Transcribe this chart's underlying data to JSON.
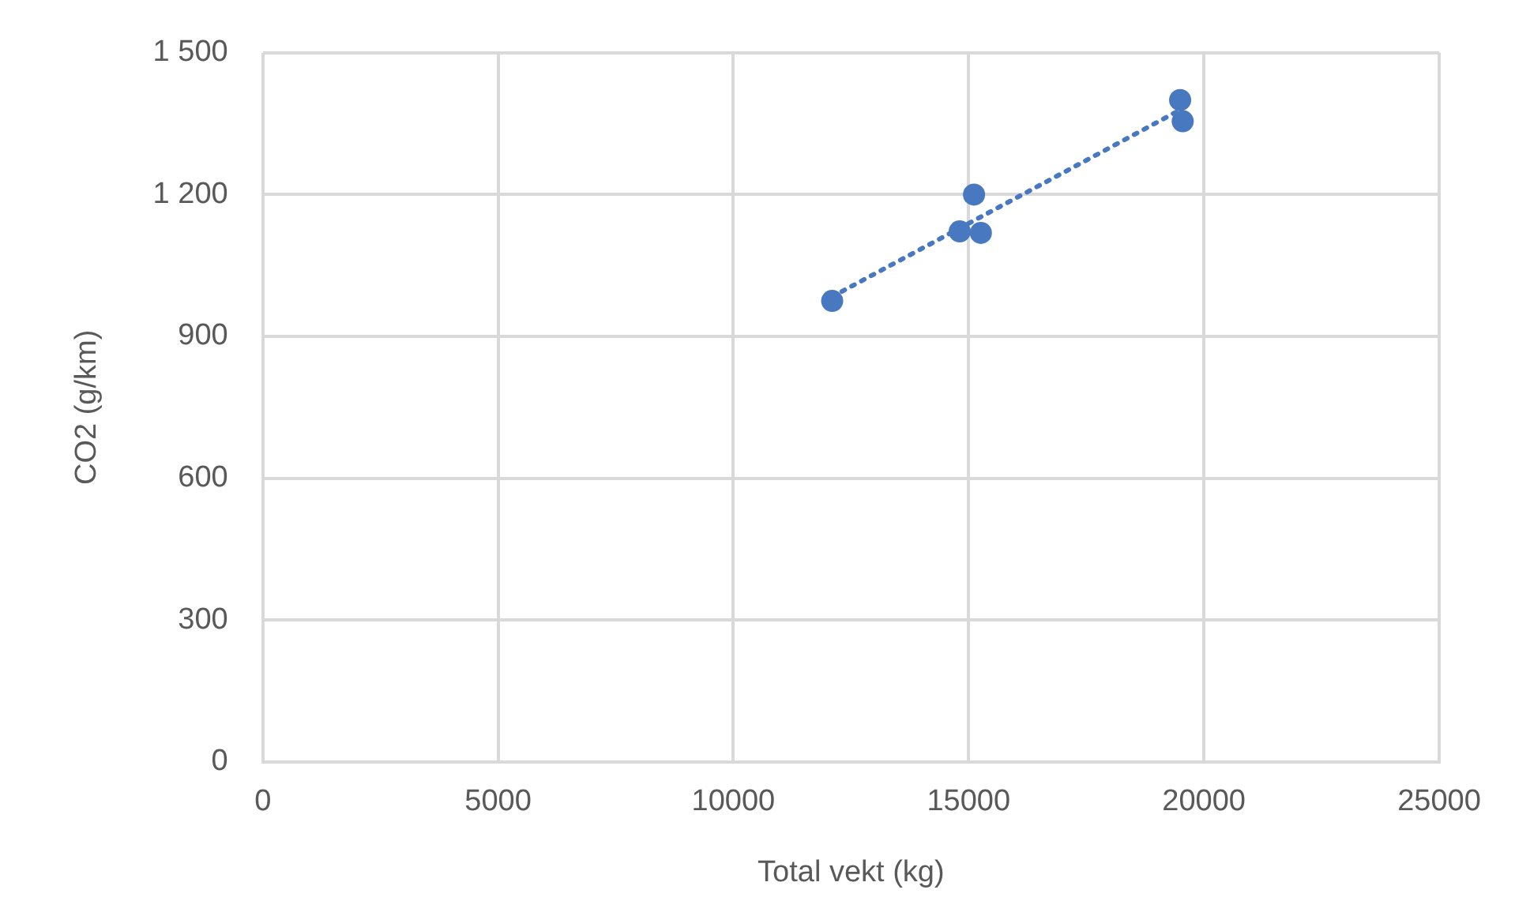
{
  "chart_data": {
    "type": "scatter",
    "xlabel": "Total vekt (kg)",
    "ylabel": "CO2 (g/km)",
    "xlim": [
      0,
      25000
    ],
    "xticks": [
      0,
      5000,
      10000,
      15000,
      20000,
      25000
    ],
    "ylim": [
      0,
      1500
    ],
    "yticks": [
      0,
      300,
      600,
      900,
      {
        "value": 1200,
        "label": "1 200"
      },
      {
        "value": 1500,
        "label": "1 500"
      }
    ],
    "grid": true,
    "legend": false,
    "marker": "circle",
    "series": [
      {
        "type": "scatter",
        "color": "#4878c0",
        "x": [
          12100,
          14810,
          15115,
          15260,
          19495,
          19550
        ],
        "values": [
          975,
          1122,
          1200,
          1119,
          1400,
          1355
        ]
      },
      {
        "type": "line",
        "color": "#4878c0",
        "x": [
          12100,
          19550
        ],
        "values": [
          984,
          1382
        ],
        "marker": "none",
        "line_style": "dotted"
      }
    ]
  }
}
